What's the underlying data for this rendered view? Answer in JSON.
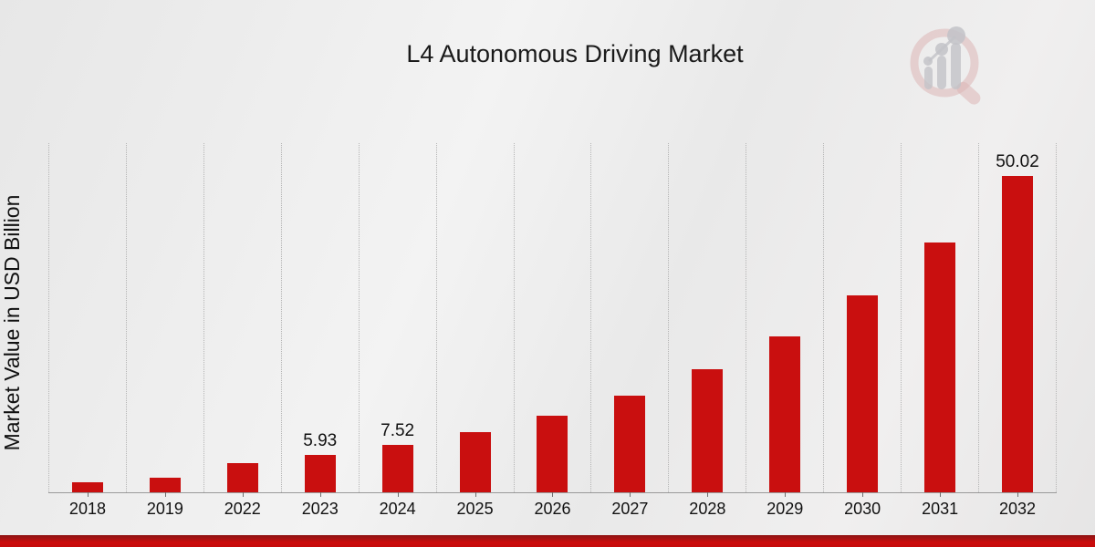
{
  "title": "L4 Autonomous Driving Market",
  "y_axis_label": "Market Value in USD Billion",
  "logo_name": "market-research-future-watermark",
  "colors": {
    "bar": "#c90f0f",
    "banner_top": "#8e1111",
    "banner_main": "#cc0c0c",
    "gridline": "#b5b5b5",
    "axis_line": "#9a9a9a",
    "background": "#ebebeb",
    "text": "#111111"
  },
  "chart_data": {
    "type": "bar",
    "title": "L4 Autonomous Driving Market",
    "xlabel": "",
    "ylabel": "Market Value in USD Billion",
    "unit": "USD Billion",
    "categories": [
      "2018",
      "2019",
      "2022",
      "2023",
      "2024",
      "2025",
      "2026",
      "2027",
      "2028",
      "2029",
      "2030",
      "2031",
      "2032"
    ],
    "values": [
      1.55,
      2.28,
      4.68,
      5.93,
      7.52,
      9.53,
      12.08,
      15.31,
      19.4,
      24.59,
      31.16,
      39.49,
      50.02
    ],
    "data_labels": [
      "",
      "",
      "",
      "5.93",
      "7.52",
      "",
      "",
      "",
      "",
      "",
      "",
      "",
      "50.02"
    ],
    "ylim": [
      0,
      55.2
    ],
    "grid": "vertical-dotted",
    "legend": "none",
    "bar_color": "#c90f0f"
  }
}
